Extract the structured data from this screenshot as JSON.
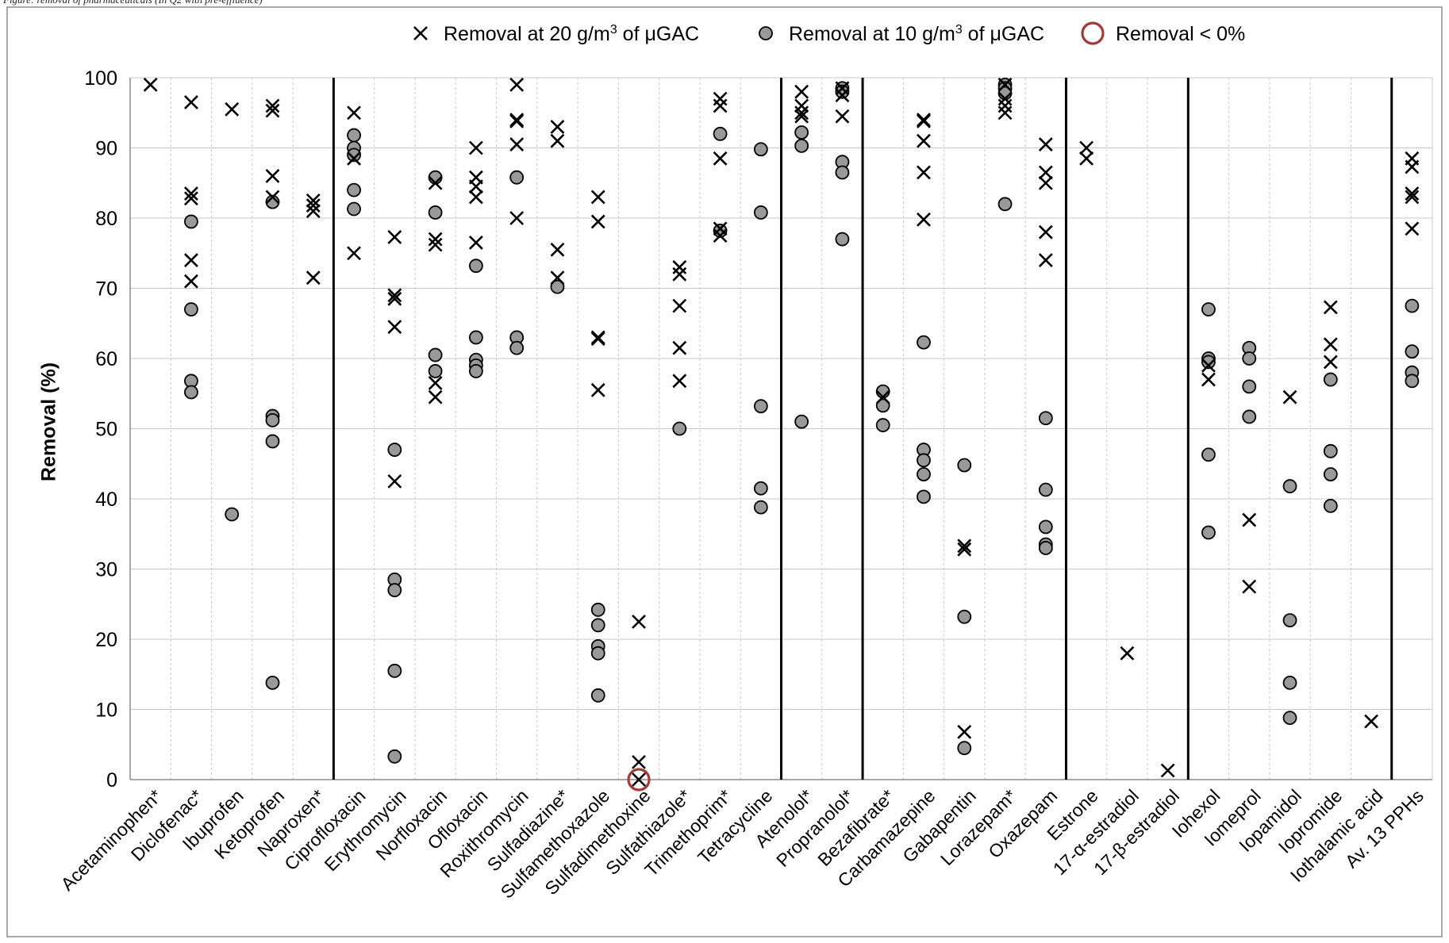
{
  "caption_fragment": "Figure: removal of pharmaceuticals (In Q2 with pre-effluence)",
  "chart_data": {
    "type": "scatter",
    "ylabel": "Removal (%)",
    "ylim": [
      0,
      100
    ],
    "yticks": [
      0,
      10,
      20,
      30,
      40,
      50,
      60,
      70,
      80,
      90,
      100
    ],
    "grid": true,
    "legend_position": "top",
    "categories": [
      "Acetaminophen*",
      "Diclofenac*",
      "Ibuprofen",
      "Ketoprofen",
      "Naproxen*",
      "Ciprofloxacin",
      "Erythromycin",
      "Norfloxacin",
      "Ofloxacin",
      "Roxithromycin",
      "Sulfadiazine*",
      "Sulfamethoxazole",
      "Sulfadimethoxine",
      "Sulfathiazole*",
      "Trimethoprim*",
      "Tetracycline",
      "Atenolol*",
      "Propranolol*",
      "Bezafibrate*",
      "Carbamazepine",
      "Gabapentin",
      "Lorazepam*",
      "Oxazepam",
      "Estrone",
      "17-α-estradiol",
      "17-β-estradiol",
      "Iohexol",
      "Iomeprol",
      "Iopamidol",
      "Iopromide",
      "Iothalamic acid",
      "Av. 13 PPHs"
    ],
    "group_separators_after": [
      "Naproxen*",
      "Tetracycline",
      "Propranolol*",
      "Oxazepam",
      "17-β-estradiol",
      "Iothalamic acid"
    ],
    "series": [
      {
        "name": "Removal at 20 g/m³ of μGAC",
        "marker": "x",
        "color": "#000000",
        "values": [
          [
            99
          ],
          [
            96.5,
            83.5,
            82.8,
            74,
            71
          ],
          [
            95.5
          ],
          [
            96,
            95.3,
            86,
            83
          ],
          [
            82.5,
            81.8,
            81,
            71.5
          ],
          [
            95,
            88.5,
            75
          ],
          [
            77.3,
            69,
            68.5,
            64.5,
            42.5
          ],
          [
            85,
            77,
            76.2,
            56.5,
            54.5
          ],
          [
            90,
            85.8,
            84.5,
            83,
            76.5
          ],
          [
            99,
            94,
            93.8,
            90.5,
            80
          ],
          [
            93,
            91,
            75.5,
            71.5
          ],
          [
            83,
            79.5,
            63,
            62.8,
            55.5
          ],
          [
            22.5,
            2.5,
            0
          ],
          [
            73,
            72,
            67.5,
            61.5,
            56.8
          ],
          [
            97,
            96,
            88.5,
            78.5,
            77.5
          ],
          [],
          [
            98,
            96,
            95,
            94.5
          ],
          [
            98.5,
            97.5,
            94.5
          ],
          [
            54.5
          ],
          [
            94,
            93.8,
            91,
            86.5,
            79.8
          ],
          [
            33.3,
            32.8,
            6.8
          ],
          [
            99,
            97,
            96,
            95
          ],
          [
            90.5,
            86.5,
            85,
            78,
            74
          ],
          [
            90,
            88.5
          ],
          [
            18
          ],
          [
            1.3
          ],
          [
            59,
            57
          ],
          [
            37,
            27.5
          ],
          [
            54.5
          ],
          [
            67.3,
            62,
            59.5
          ],
          [
            8.3
          ],
          [
            88.5,
            87.3,
            83.5,
            83,
            78.5
          ]
        ]
      },
      {
        "name": "Removal at 10 g/m³ of μGAC",
        "marker": "circle",
        "color": "#999999",
        "values": [
          [],
          [
            79.5,
            67,
            56.8,
            55.2
          ],
          [
            37.8
          ],
          [
            82.3,
            51.8,
            51.2,
            48.2,
            13.8
          ],
          [],
          [
            91.8,
            90,
            89,
            84,
            81.3
          ],
          [
            47,
            28.5,
            27,
            15.5,
            3.3
          ],
          [
            85.8,
            80.8,
            60.5,
            58.2
          ],
          [
            73.2,
            63,
            59.8,
            59,
            58.2
          ],
          [
            85.8,
            63,
            61.5
          ],
          [
            70.2
          ],
          [
            24.2,
            22,
            19,
            18,
            12
          ],
          [],
          [
            50
          ],
          [
            92,
            78.2
          ],
          [
            89.8,
            80.8,
            53.2,
            41.5,
            38.8
          ],
          [
            92.2,
            90.3,
            51
          ],
          [
            98.5,
            98,
            88,
            86.5,
            77
          ],
          [
            55.3,
            53.3,
            50.5
          ],
          [
            62.3,
            47,
            45.5,
            43.5,
            40.3
          ],
          [
            44.8,
            23.2,
            4.5
          ],
          [
            99,
            98.5,
            97.8,
            82
          ],
          [
            51.5,
            41.3,
            36,
            33.5,
            33
          ],
          [],
          [],
          [],
          [
            67,
            60,
            59.5,
            46.3,
            35.2
          ],
          [
            61.5,
            60,
            56,
            51.7
          ],
          [
            41.8,
            22.7,
            13.8,
            8.8
          ],
          [
            57,
            46.8,
            43.5,
            39
          ],
          [],
          [
            67.5,
            61,
            58,
            56.8
          ]
        ]
      }
    ],
    "negative_removal_markers": [
      {
        "category": "Sulfadimethoxine",
        "label": "Removal < 0%"
      }
    ]
  },
  "legend": {
    "items": [
      {
        "label_pre": "Removal at 20 g/m",
        "sup": "3",
        "label_post": " of μGAC",
        "marker": "x"
      },
      {
        "label_pre": "Removal at 10 g/m",
        "sup": "3",
        "label_post": " of μGAC",
        "marker": "circle"
      },
      {
        "label_pre": "Removal < 0%",
        "sup": "",
        "label_post": "",
        "marker": "open-circle"
      }
    ]
  },
  "colors": {
    "grid": "#c8c8c8",
    "frame": "#8c8c8c",
    "separator": "#000000",
    "x_marker": "#000000",
    "circle_fill": "#999999",
    "circle_stroke": "#000000",
    "negative_ring": "#a33a3a"
  }
}
